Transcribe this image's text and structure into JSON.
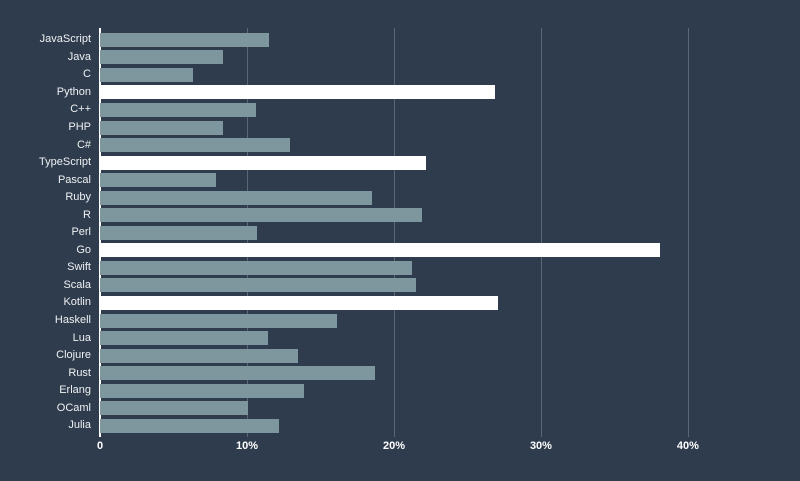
{
  "chart_data": {
    "type": "bar",
    "orientation": "horizontal",
    "title": "",
    "xlabel": "",
    "ylabel": "",
    "categories": [
      "JavaScript",
      "Java",
      "C",
      "Python",
      "C++",
      "PHP",
      "C#",
      "TypeScript",
      "Pascal",
      "Ruby",
      "R",
      "Perl",
      "Go",
      "Swift",
      "Scala",
      "Kotlin",
      "Haskell",
      "Lua",
      "Clojure",
      "Rust",
      "Erlang",
      "OCaml",
      "Julia"
    ],
    "values": [
      11.5,
      8.4,
      6.3,
      26.9,
      10.6,
      8.4,
      12.9,
      22.2,
      7.9,
      18.5,
      21.9,
      10.7,
      38.1,
      21.2,
      21.5,
      27.1,
      16.1,
      11.4,
      13.5,
      18.7,
      13.9,
      10.1,
      12.2
    ],
    "highlighted": [
      "Python",
      "TypeScript",
      "Go",
      "Kotlin"
    ],
    "xlim": [
      0,
      41.5
    ],
    "x_ticks": [
      {
        "value": 0,
        "label": "0"
      },
      {
        "value": 10,
        "label": "10%"
      },
      {
        "value": 20,
        "label": "20%"
      },
      {
        "value": 30,
        "label": "30%"
      },
      {
        "value": 40,
        "label": "40%"
      }
    ],
    "grid": true,
    "legend": "none",
    "colors": {
      "background": "#2f3c4d",
      "bar": "#7e969d",
      "highlight": "#ffffff",
      "gridline": "#5c6775",
      "axis_line": "#ffffff",
      "label_text": "#eef1f3",
      "tick_text": "#ffffff"
    }
  }
}
